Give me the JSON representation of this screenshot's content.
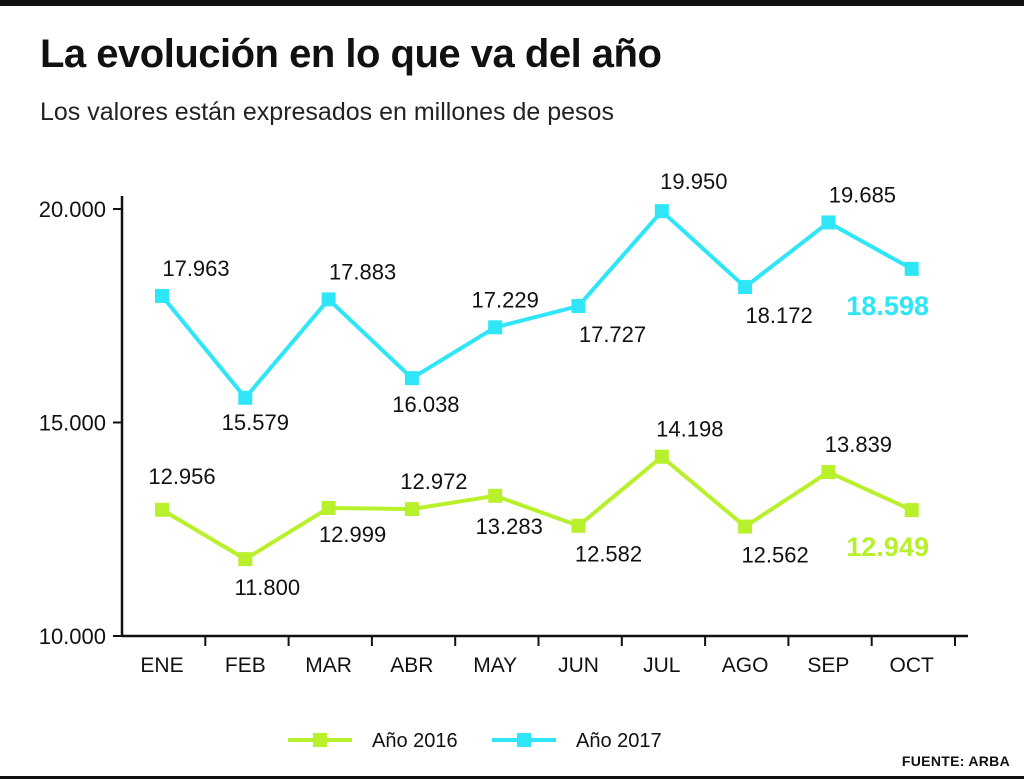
{
  "title": "La evolución en lo que va del año",
  "subtitle": "Los valores están expresados en millones de pesos",
  "source": "FUENTE: ARBA",
  "chart_data": {
    "type": "line",
    "categories": [
      "ENE",
      "FEB",
      "MAR",
      "ABR",
      "MAY",
      "JUN",
      "JUL",
      "AGO",
      "SEP",
      "OCT"
    ],
    "ylim": [
      10000,
      20000
    ],
    "yticks": [
      10000,
      15000,
      20000
    ],
    "ytick_labels": [
      "10.000",
      "15.000",
      "20.000"
    ],
    "grid": false,
    "legend_position": "bottom-center",
    "series": [
      {
        "name": "Año 2016",
        "color": "#b8f02c",
        "values": [
          12956,
          11800,
          12999,
          12972,
          13283,
          12582,
          14198,
          12562,
          13839,
          12949
        ],
        "labels": [
          "12.956",
          "11.800",
          "12.999",
          "12.972",
          "13.283",
          "12.582",
          "14.198",
          "12.562",
          "13.839",
          "12.949"
        ]
      },
      {
        "name": "Año 2017",
        "color": "#2ee6f5",
        "values": [
          17963,
          15579,
          17883,
          16038,
          17229,
          17727,
          19950,
          18172,
          19685,
          18598
        ],
        "labels": [
          "17.963",
          "15.579",
          "17.883",
          "16.038",
          "17.229",
          "17.727",
          "19.950",
          "18.172",
          "19.685",
          "18.598"
        ]
      }
    ]
  }
}
